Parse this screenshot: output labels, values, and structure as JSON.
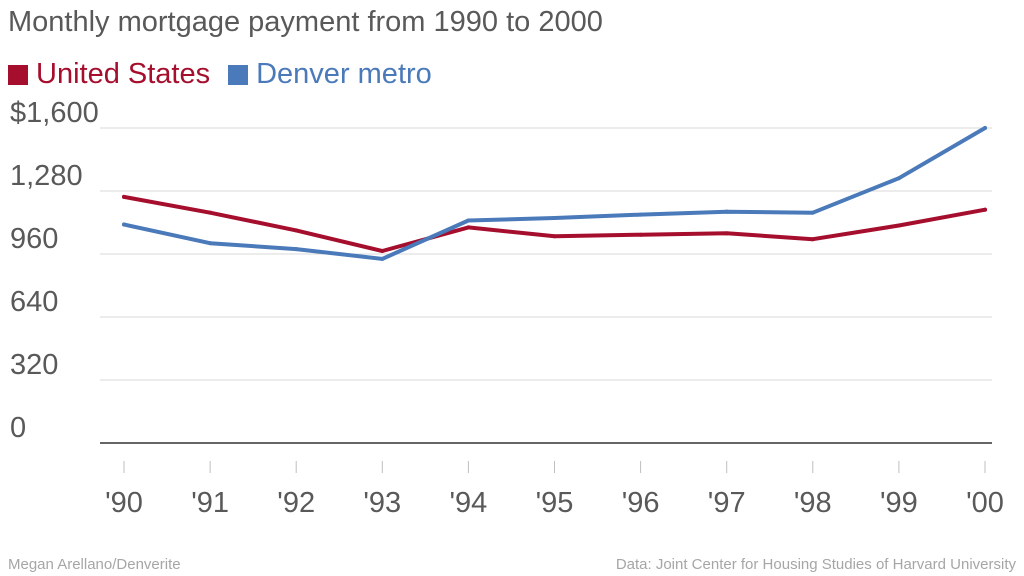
{
  "chart_data": {
    "type": "line",
    "title": "Monthly mortgage payment from 1990 to 2000",
    "categories": [
      "'90",
      "'91",
      "'92",
      "'93",
      "'94",
      "'95",
      "'96",
      "'97",
      "'98",
      "'99",
      "'00"
    ],
    "ylim": [
      0,
      1600
    ],
    "yticks": [
      0,
      320,
      640,
      960,
      1280,
      1600
    ],
    "ytick_labels": [
      "0",
      "320",
      "640",
      "960",
      "1,280",
      "$1,600"
    ],
    "grid": true,
    "legend_position": "top-left",
    "series": [
      {
        "name": "United States",
        "color": "#a50e2d",
        "values": [
          1250,
          1170,
          1080,
          975,
          1095,
          1050,
          1058,
          1065,
          1035,
          1105,
          1185
        ]
      },
      {
        "name": "Denver metro",
        "color": "#4a7ab9",
        "values": [
          1110,
          1015,
          985,
          935,
          1130,
          1143,
          1160,
          1175,
          1170,
          1345,
          1600
        ]
      }
    ]
  },
  "footer": {
    "credit": "Megan Arellano/Denverite",
    "source": "Data: Joint Center for Housing Studies of Harvard University"
  }
}
